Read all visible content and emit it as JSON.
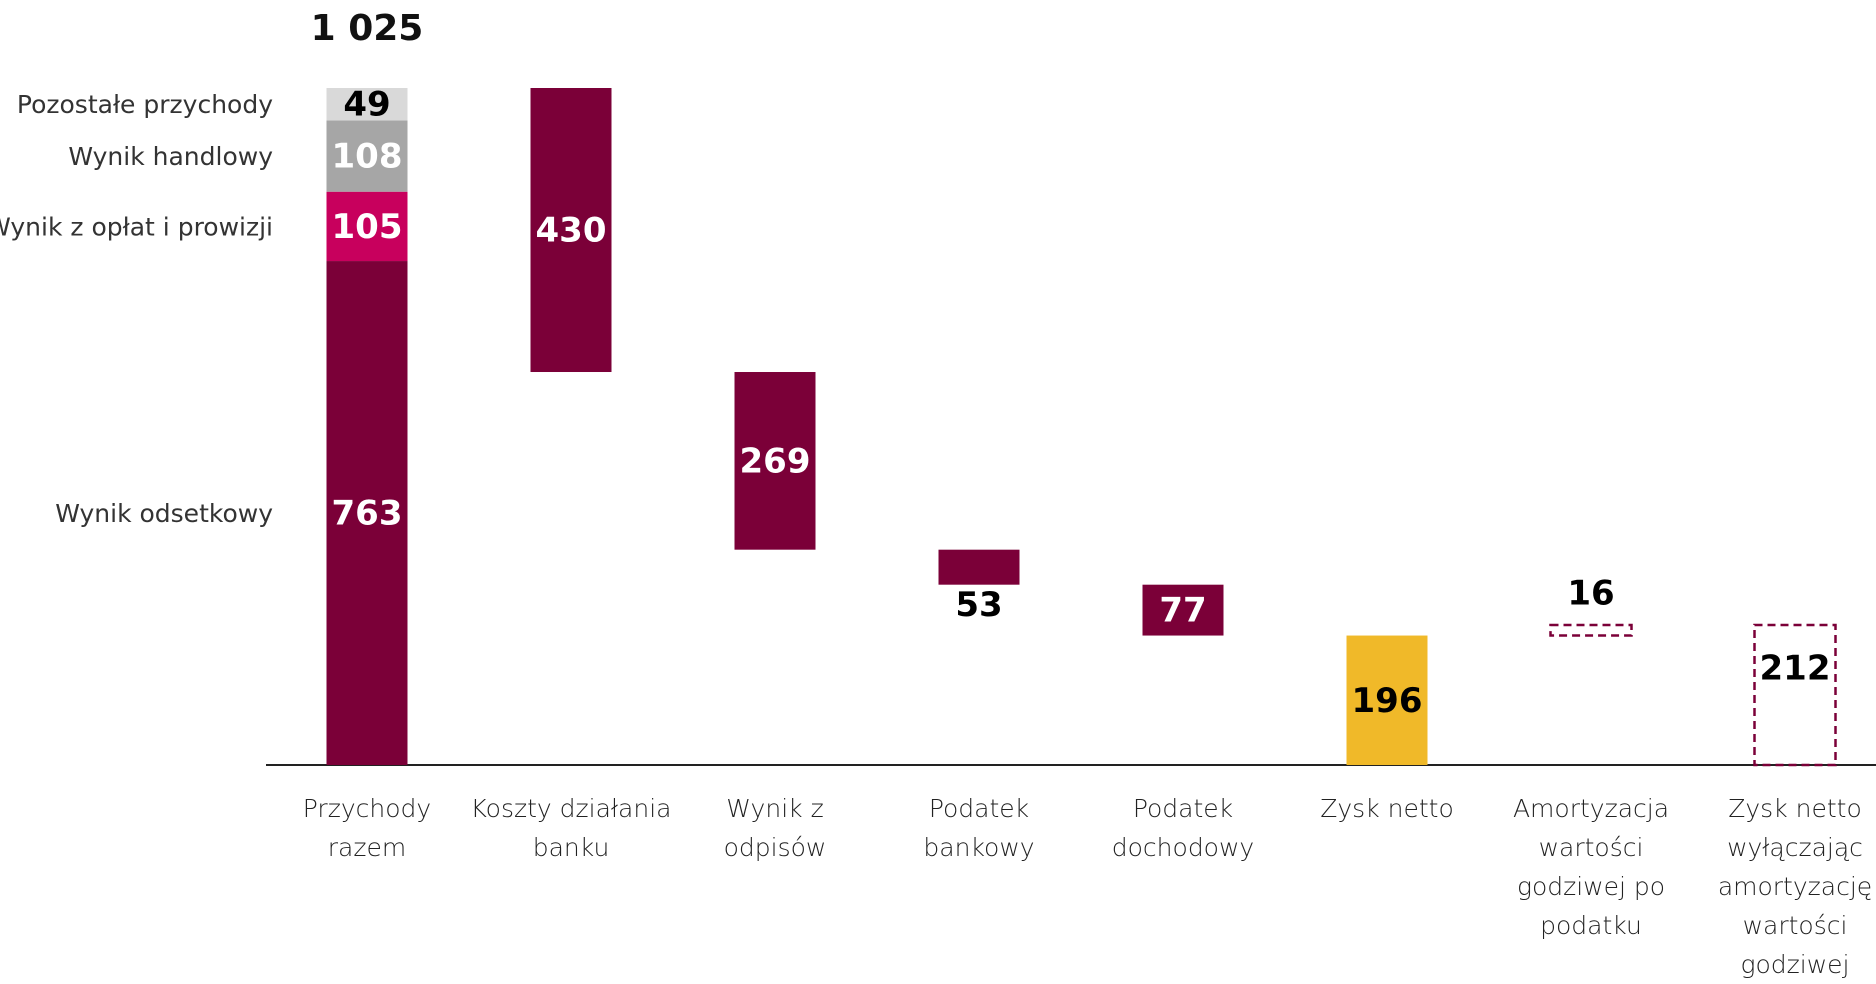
{
  "chart_data": {
    "type": "waterfall",
    "categories": [
      "Przychody\nrazem",
      "Koszty działania\nbanku",
      "Wynik z\nodpisów",
      "Podatek\nbankowy",
      "Podatek\ndochodowy",
      "Zysk netto",
      "Amortyzacja\nwartości\ngodziwej po\npodatku",
      "Zysk netto\nwyłączając\namortyzację\nwartości\ngodziwej"
    ],
    "total": 1025,
    "total_label": "1 025",
    "components": [
      {
        "name": "Wynik odsetkowy",
        "value": 763,
        "color": "#7b0038",
        "label_color": "#ffffff"
      },
      {
        "name": "Wynik z opłat i prowizji",
        "value": 105,
        "color": "#c8005d",
        "label_color": "#ffffff"
      },
      {
        "name": "Wynik handlowy",
        "value": 108,
        "color": "#a6a6a6",
        "label_color": "#ffffff"
      },
      {
        "name": "Pozostałe przychody",
        "value": 49,
        "color": "#d9d9d9",
        "label_color": "#000000"
      }
    ],
    "steps": [
      {
        "value": 430,
        "kind": "decrease",
        "color": "#7b0038",
        "style": "solid",
        "label_color": "#ffffff"
      },
      {
        "value": 269,
        "kind": "decrease",
        "color": "#7b0038",
        "style": "solid",
        "label_color": "#ffffff"
      },
      {
        "value": 53,
        "kind": "decrease",
        "color": "#7b0038",
        "style": "solid",
        "label_color": "#000000"
      },
      {
        "value": 77,
        "kind": "decrease",
        "color": "#7b0038",
        "style": "solid",
        "label_color": "#ffffff"
      },
      {
        "value": 196,
        "kind": "total",
        "color": "#f0b929",
        "style": "solid",
        "label_color": "#000000"
      },
      {
        "value": 16,
        "kind": "increase",
        "color": "#7b0038",
        "style": "dashed",
        "label_color": "#000000"
      },
      {
        "value": 212,
        "kind": "total",
        "color": "#7b0038",
        "style": "dashed",
        "label_color": "#000000"
      }
    ]
  }
}
